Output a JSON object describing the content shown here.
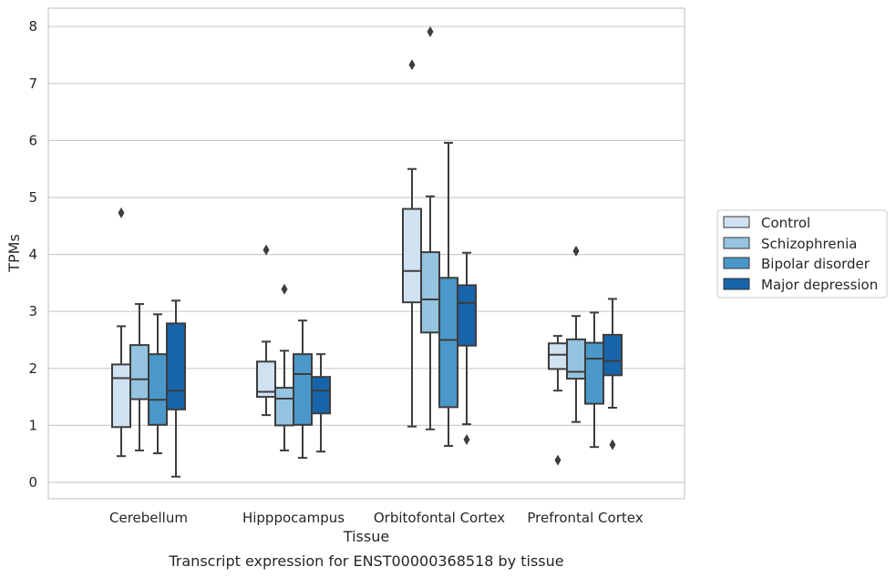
{
  "chart_data": {
    "type": "box",
    "title": "",
    "caption": "Transcript expression for ENST00000368518 by tissue",
    "xlabel": "Tissue",
    "ylabel": "TPMs",
    "ylim": [
      -0.27,
      8.3
    ],
    "yticks": [
      0,
      1,
      2,
      3,
      4,
      5,
      6,
      7,
      8
    ],
    "grid": true,
    "legend_position": "right",
    "categories": [
      "Cerebellum",
      "Hipppocampus",
      "Orbitofontal Cortex",
      "Prefrontal Cortex"
    ],
    "series": [
      {
        "name": "Control",
        "color": "#d0e1f2",
        "boxes": [
          {
            "whislo": 0.46,
            "q1": 0.97,
            "med": 1.83,
            "q3": 2.07,
            "whishi": 2.74,
            "fliers": [
              4.73
            ]
          },
          {
            "whislo": 1.18,
            "q1": 1.5,
            "med": 1.59,
            "q3": 2.12,
            "whishi": 2.47,
            "fliers": [
              4.08
            ]
          },
          {
            "whislo": 0.98,
            "q1": 3.16,
            "med": 3.71,
            "q3": 4.8,
            "whishi": 5.5,
            "fliers": [
              7.33
            ]
          },
          {
            "whislo": 1.61,
            "q1": 1.99,
            "med": 2.24,
            "q3": 2.44,
            "whishi": 2.57,
            "fliers": [
              0.39
            ]
          }
        ]
      },
      {
        "name": "Schizophrenia",
        "color": "#94c4df",
        "boxes": [
          {
            "whislo": 0.56,
            "q1": 1.46,
            "med": 1.81,
            "q3": 2.41,
            "whishi": 3.13,
            "fliers": []
          },
          {
            "whislo": 0.56,
            "q1": 1.0,
            "med": 1.47,
            "q3": 1.66,
            "whishi": 2.31,
            "fliers": [
              3.39
            ]
          },
          {
            "whislo": 0.93,
            "q1": 2.63,
            "med": 3.21,
            "q3": 4.04,
            "whishi": 5.02,
            "fliers": [
              7.91
            ]
          },
          {
            "whislo": 1.06,
            "q1": 1.82,
            "med": 1.94,
            "q3": 2.51,
            "whishi": 2.92,
            "fliers": [
              4.06
            ]
          }
        ]
      },
      {
        "name": "Bipolar disorder",
        "color": "#4a98c9",
        "boxes": [
          {
            "whislo": 0.51,
            "q1": 1.01,
            "med": 1.45,
            "q3": 2.25,
            "whishi": 2.95,
            "fliers": []
          },
          {
            "whislo": 0.43,
            "q1": 1.01,
            "med": 1.9,
            "q3": 2.25,
            "whishi": 2.84,
            "fliers": []
          },
          {
            "whislo": 0.64,
            "q1": 1.32,
            "med": 2.5,
            "q3": 3.59,
            "whishi": 5.96,
            "fliers": []
          },
          {
            "whislo": 0.62,
            "q1": 1.38,
            "med": 2.17,
            "q3": 2.45,
            "whishi": 2.98,
            "fliers": []
          }
        ]
      },
      {
        "name": "Major depression",
        "color": "#1764ab",
        "boxes": [
          {
            "whislo": 0.1,
            "q1": 1.28,
            "med": 1.61,
            "q3": 2.79,
            "whishi": 3.19,
            "fliers": []
          },
          {
            "whislo": 0.54,
            "q1": 1.21,
            "med": 1.61,
            "q3": 1.85,
            "whishi": 2.25,
            "fliers": []
          },
          {
            "whislo": 1.02,
            "q1": 2.4,
            "med": 3.15,
            "q3": 3.46,
            "whishi": 4.03,
            "fliers": [
              0.75
            ]
          },
          {
            "whislo": 1.31,
            "q1": 1.88,
            "med": 2.13,
            "q3": 2.59,
            "whishi": 3.22,
            "fliers": [
              0.66
            ]
          }
        ]
      }
    ]
  }
}
